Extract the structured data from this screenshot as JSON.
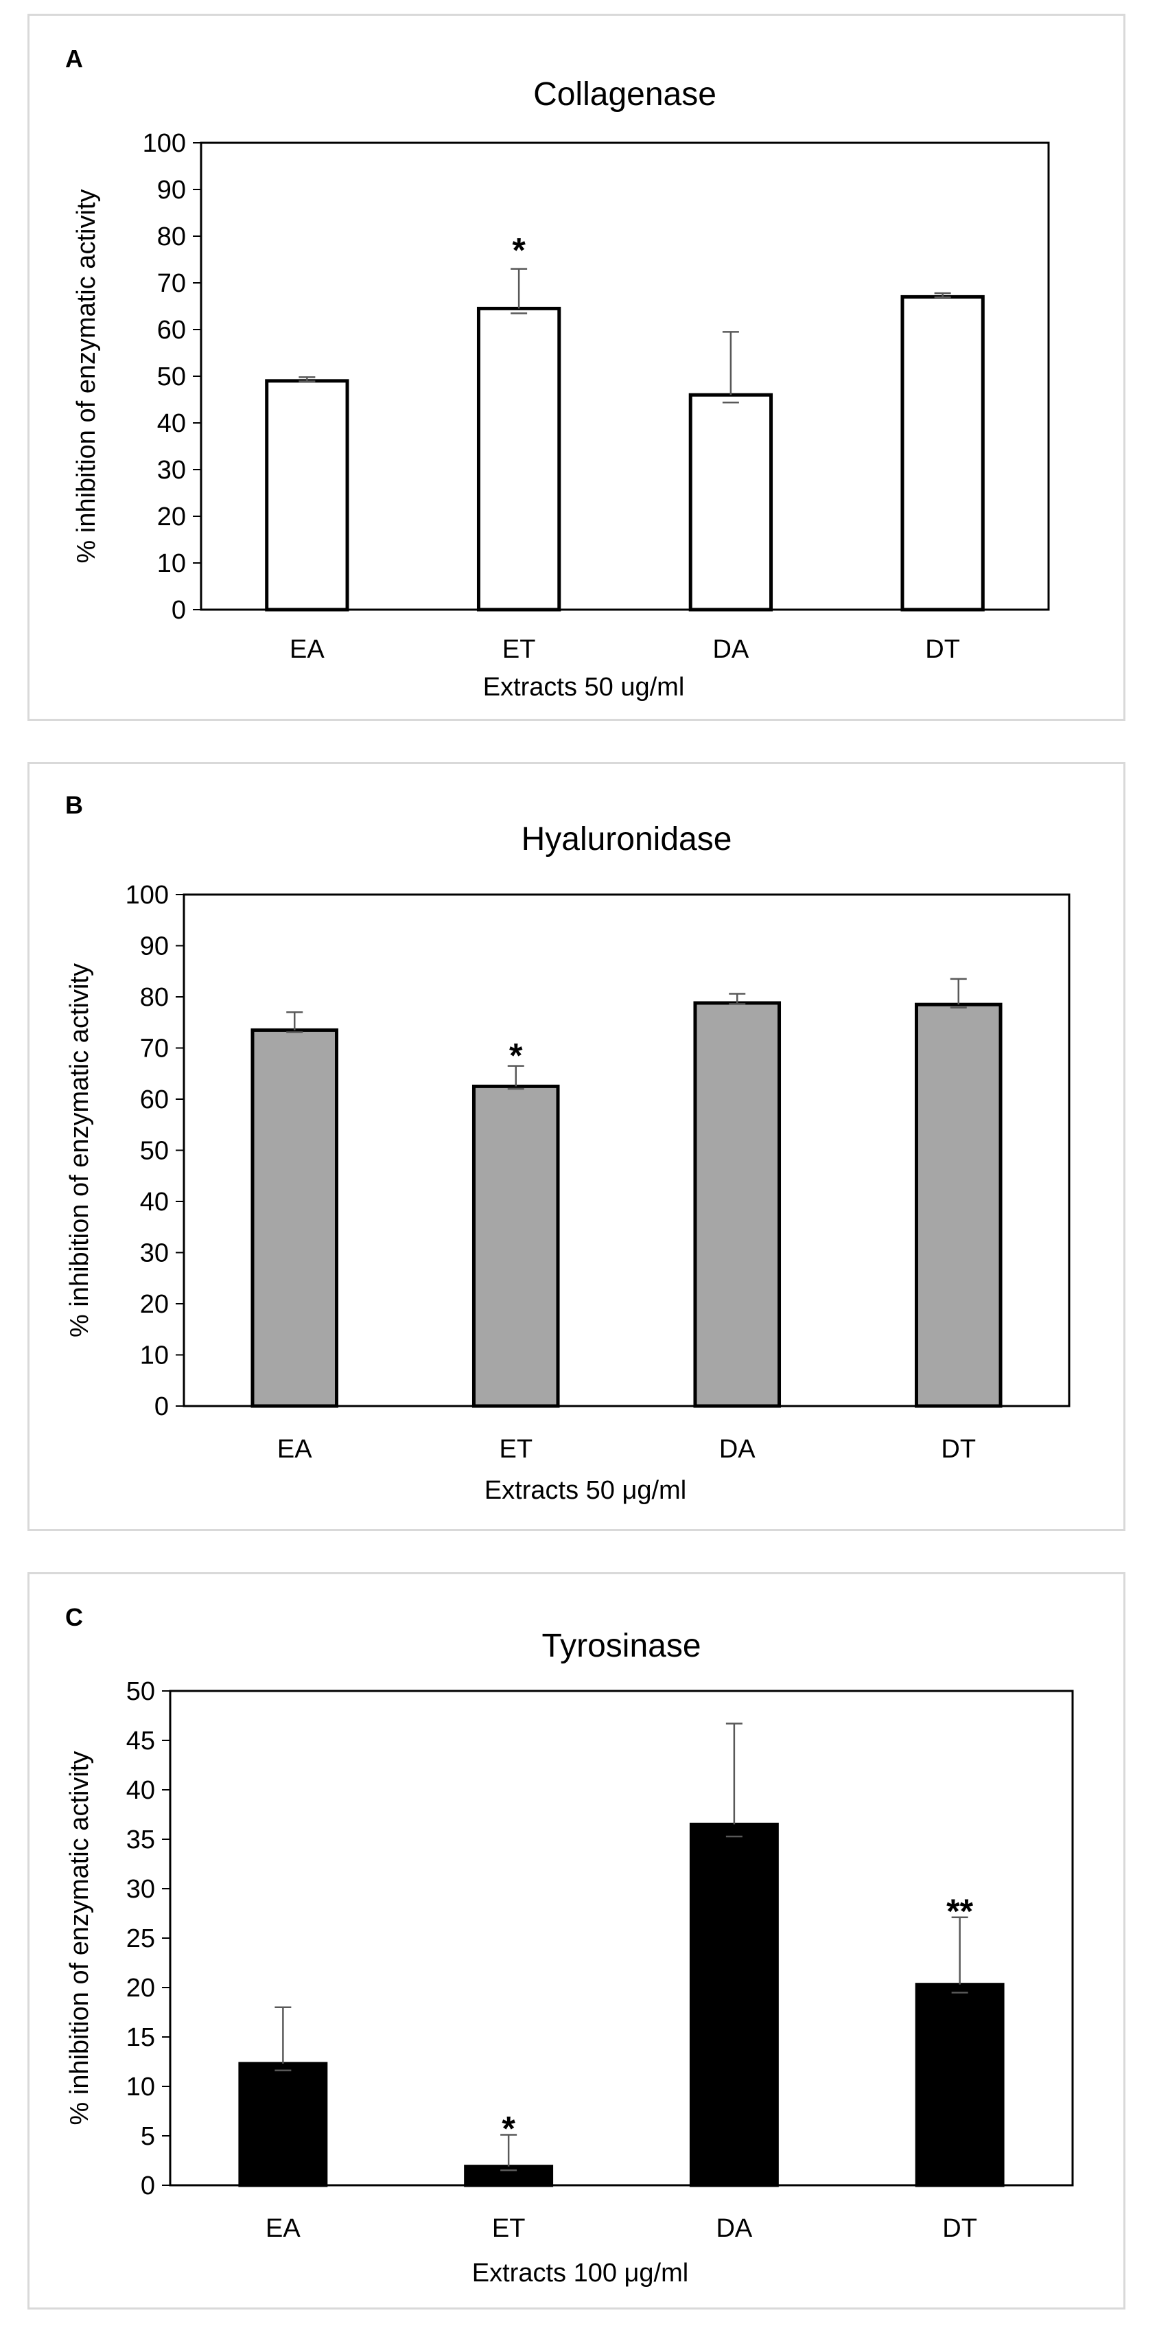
{
  "chart_data": [
    {
      "panel_label": "A",
      "type": "bar",
      "title": "Collagenase",
      "xlabel": "Extracts 50 ug/ml",
      "ylabel": "% inhibition of enzymatic activity",
      "categories": [
        "EA",
        "ET",
        "DA",
        "DT"
      ],
      "values": [
        49,
        64.5,
        46,
        67
      ],
      "errors": [
        0.8,
        8.5,
        13.5,
        0.8
      ],
      "significance": [
        "",
        "*",
        "",
        ""
      ],
      "ylim": [
        0,
        100
      ],
      "yticks": [
        0,
        10,
        20,
        30,
        40,
        50,
        60,
        70,
        80,
        90,
        100
      ],
      "bar_color": "#ffffff",
      "grid": false
    },
    {
      "panel_label": "B",
      "type": "bar",
      "title": "Hyaluronidase",
      "xlabel": "Extracts 50 μg/ml",
      "ylabel": "% inhibition of enzymatic activity",
      "categories": [
        "EA",
        "ET",
        "DA",
        "DT"
      ],
      "values": [
        73.5,
        62.5,
        78.8,
        78.5
      ],
      "errors": [
        3.5,
        4,
        1.8,
        5
      ],
      "significance": [
        "",
        "*",
        "",
        ""
      ],
      "ylim": [
        0,
        100
      ],
      "yticks": [
        0,
        10,
        20,
        30,
        40,
        50,
        60,
        70,
        80,
        90,
        100
      ],
      "bar_color": "#a6a6a6",
      "grid": false
    },
    {
      "panel_label": "C",
      "type": "bar",
      "title": "Tyrosinase",
      "xlabel": "Extracts 100 μg/ml",
      "ylabel": "% inhibition of enzymatic activity",
      "categories": [
        "EA",
        "ET",
        "DA",
        "DT"
      ],
      "values": [
        12.3,
        1.9,
        36.5,
        20.3
      ],
      "errors": [
        5.7,
        3.2,
        10.2,
        6.8
      ],
      "significance": [
        "",
        "*",
        "",
        "**"
      ],
      "ylim": [
        0,
        50
      ],
      "yticks": [
        0,
        5,
        10,
        15,
        20,
        25,
        30,
        35,
        40,
        45,
        50
      ],
      "bar_color": "#000000",
      "grid": false
    }
  ]
}
